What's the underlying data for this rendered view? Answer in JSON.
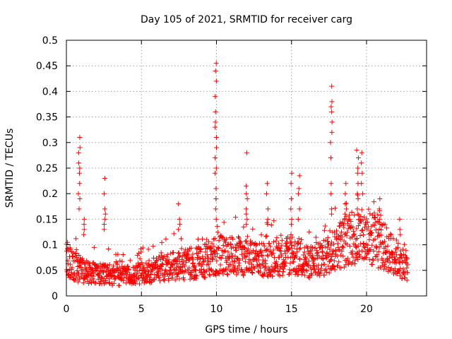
{
  "chart_data": {
    "type": "scatter",
    "title": "Day 105 of 2021, SRMTID for receiver carg",
    "xlabel": "GPS time / hours",
    "ylabel": "SRMTID / TECUs",
    "xlim": [
      0,
      24
    ],
    "ylim": [
      0,
      0.5
    ],
    "xticks": [
      0,
      5,
      10,
      15,
      20
    ],
    "xtick_labels": [
      "0",
      "5",
      "10",
      "15",
      "20"
    ],
    "yticks": [
      0,
      0.05,
      0.1,
      0.15,
      0.2,
      0.25,
      0.3,
      0.35,
      0.4,
      0.45,
      0.5
    ],
    "ytick_labels": [
      "0",
      "0.05",
      "0.1",
      "0.15",
      "0.2",
      "0.25",
      "0.3",
      "0.35",
      "0.4",
      "0.45",
      "0.5"
    ],
    "grid": true,
    "marker": "plus",
    "marker_color": "#ff0000",
    "x_end": 22.75,
    "baseline_profile": [
      [
        0,
        0.08
      ],
      [
        1,
        0.055
      ],
      [
        2,
        0.05
      ],
      [
        3,
        0.045
      ],
      [
        4,
        0.045
      ],
      [
        5,
        0.05
      ],
      [
        6,
        0.06
      ],
      [
        7,
        0.065
      ],
      [
        8,
        0.07
      ],
      [
        9,
        0.075
      ],
      [
        10,
        0.09
      ],
      [
        11,
        0.09
      ],
      [
        12,
        0.085
      ],
      [
        13,
        0.08
      ],
      [
        14,
        0.085
      ],
      [
        15,
        0.09
      ],
      [
        16,
        0.075
      ],
      [
        17,
        0.08
      ],
      [
        18,
        0.11
      ],
      [
        19,
        0.13
      ],
      [
        20,
        0.13
      ],
      [
        21,
        0.115
      ],
      [
        22,
        0.085
      ],
      [
        22.75,
        0.065
      ]
    ],
    "bursts": [
      {
        "t": 0.85,
        "y": [
          0.31,
          0.29,
          0.28,
          0.26,
          0.25,
          0.24,
          0.22,
          0.2,
          0.19,
          0.17
        ]
      },
      {
        "t": 1.2,
        "y": [
          0.15,
          0.14,
          0.13,
          0.12
        ]
      },
      {
        "t": 2.55,
        "y": [
          0.23,
          0.2,
          0.17,
          0.16,
          0.15,
          0.14,
          0.13
        ]
      },
      {
        "t": 7.5,
        "y": [
          0.18,
          0.15,
          0.14,
          0.13
        ]
      },
      {
        "t": 9.95,
        "y": [
          0.455,
          0.44,
          0.42,
          0.39,
          0.36,
          0.34,
          0.33,
          0.31,
          0.29,
          0.27,
          0.25,
          0.24,
          0.21,
          0.19,
          0.17,
          0.15
        ]
      },
      {
        "t": 12.0,
        "y": [
          0.28,
          0.215,
          0.2,
          0.19,
          0.17,
          0.16,
          0.15,
          0.14
        ]
      },
      {
        "t": 13.4,
        "y": [
          0.22,
          0.2,
          0.17,
          0.15,
          0.14
        ]
      },
      {
        "t": 15.0,
        "y": [
          0.24,
          0.22,
          0.19,
          0.17,
          0.15,
          0.14
        ]
      },
      {
        "t": 15.5,
        "y": [
          0.235,
          0.21,
          0.2,
          0.17,
          0.15
        ]
      },
      {
        "t": 17.65,
        "y": [
          0.41,
          0.38,
          0.37,
          0.36,
          0.34,
          0.32,
          0.3,
          0.27,
          0.22,
          0.2,
          0.17,
          0.16
        ]
      },
      {
        "t": 18.6,
        "y": [
          0.22,
          0.2,
          0.18,
          0.17,
          0.16
        ]
      },
      {
        "t": 19.4,
        "y": [
          0.285,
          0.27,
          0.25,
          0.24,
          0.22,
          0.2,
          0.19,
          0.17,
          0.16
        ]
      },
      {
        "t": 19.7,
        "y": [
          0.28,
          0.26,
          0.24,
          0.22,
          0.2
        ]
      },
      {
        "t": 20.9,
        "y": [
          0.19,
          0.17,
          0.15,
          0.14
        ]
      },
      {
        "t": 22.2,
        "y": [
          0.15,
          0.13,
          0.12
        ]
      }
    ]
  }
}
